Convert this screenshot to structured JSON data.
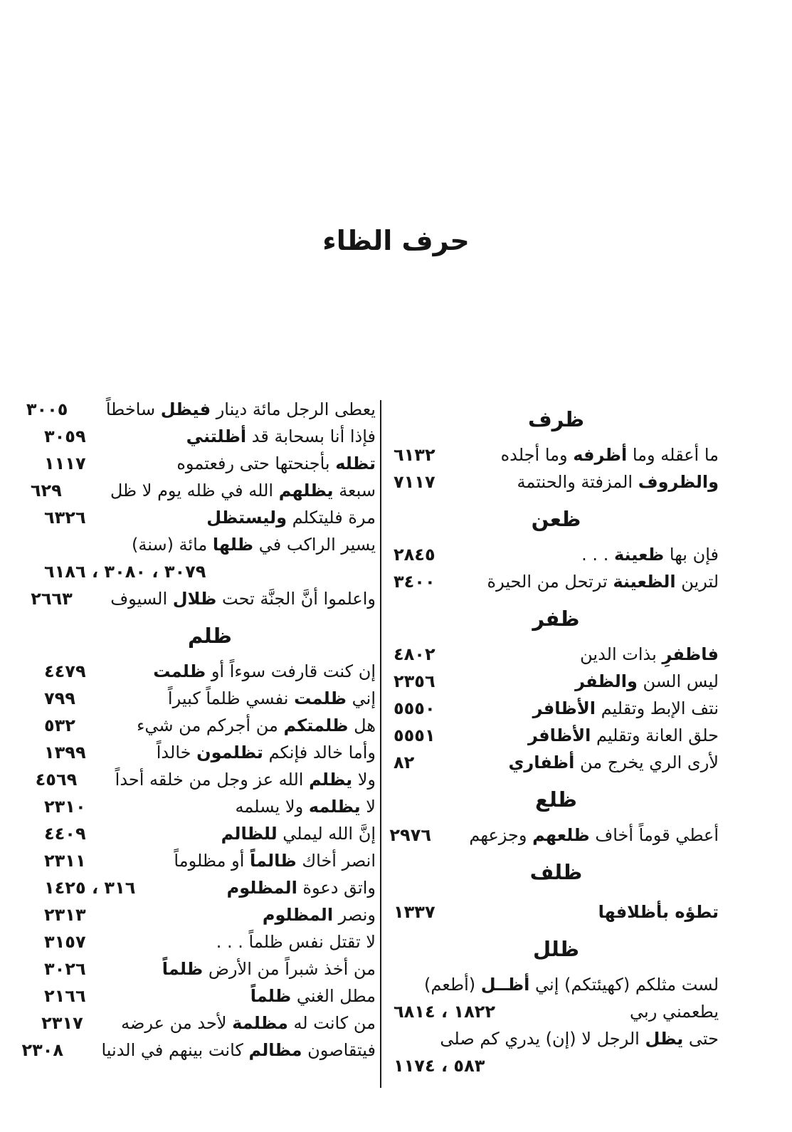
{
  "title": "حرف الظاء",
  "columns": {
    "right": [
      {
        "type": "heading",
        "text": "ظرف"
      },
      {
        "type": "entry",
        "text": "ما أعقله وما **أظرفه** وما أجلده",
        "num": "٦١٣٢"
      },
      {
        "type": "entry",
        "text": "**والظروف** المزفتة والحنتمة",
        "num": "٧١١٧"
      },
      {
        "type": "heading",
        "text": "ظعن"
      },
      {
        "type": "entry",
        "text": "فإن بها **ظعينة** . . .",
        "num": "٢٨٤٥"
      },
      {
        "type": "entry",
        "text": "لترين **الظعينة** ترتحل من الحيرة",
        "num": "٣٤٠٠"
      },
      {
        "type": "heading",
        "text": "ظفر"
      },
      {
        "type": "entry",
        "text": "**فاظفرِ** بذات الدين",
        "num": "٤٨٠٢"
      },
      {
        "type": "entry",
        "text": "ليس السن **والظفر**",
        "num": "٢٣٥٦"
      },
      {
        "type": "entry",
        "text": "نتف الإبط وتقليم **الأظافر**",
        "num": "٥٥٥٠"
      },
      {
        "type": "entry",
        "text": "حلق العانة وتقليم **الأظافر**",
        "num": "٥٥٥١"
      },
      {
        "type": "entry",
        "text": "لأرى الري يخرج من **أظفاري**",
        "num": "٨٢"
      },
      {
        "type": "heading",
        "text": "ظلع"
      },
      {
        "type": "entry",
        "text": "أعطي قوماً أخاف **ظلعهم** وجزعهم",
        "num": "٢٩٧٦"
      },
      {
        "type": "heading",
        "text": "ظلف"
      },
      {
        "type": "entry",
        "text": "**تطؤه بأظلافها**",
        "num": "١٣٣٧",
        "gap": true
      },
      {
        "type": "heading",
        "text": "ظلل"
      },
      {
        "type": "entry",
        "text": "لست مثلكم (كهيئتكم) إني **أظــل** (أطعم)",
        "num": ""
      },
      {
        "type": "entry",
        "text": "يطعمني ربي",
        "num": "١٨٢٢ ، ٦٨١٤"
      },
      {
        "type": "entry",
        "text": "حتى **يظل** الرجل لا (إن) يدري كم صلى",
        "num": ""
      },
      {
        "type": "numline",
        "text": "",
        "num": "٥٨٣ ، ١١٧٤"
      }
    ],
    "left": [
      {
        "type": "entry",
        "text": "يعطى الرجل مائة دينار **فيظل** ساخطاً",
        "num": "٣٠٠٥"
      },
      {
        "type": "entry",
        "text": "فإذا أنا بسحابة قد **أظلتني**",
        "num": "٣٠٥٩"
      },
      {
        "type": "entry",
        "text": "**تظله** بأجنحتها حتى رفعتموه",
        "num": "١١١٧"
      },
      {
        "type": "entry",
        "text": "سبعة **يظلهم** الله في ظله يوم لا ظل",
        "num": "٦٢٩"
      },
      {
        "type": "entry",
        "text": "مرة فليتكلم **وليستظل**",
        "num": "٦٣٢٦"
      },
      {
        "type": "entry",
        "text": "يسير الراكب في **ظلها** مائة (سنة)",
        "num": ""
      },
      {
        "type": "numline",
        "text": "",
        "num": "٣٠٧٩ ، ٣٠٨٠ ، ٦١٨٦"
      },
      {
        "type": "entry",
        "text": "واعلموا أنَّ الجنَّة تحت **ظلال** السيوف",
        "num": "٢٦٦٣"
      },
      {
        "type": "heading",
        "text": "ظلم"
      },
      {
        "type": "entry",
        "text": "إن كنت قارفت سوءاً أو **ظلمت**",
        "num": "٤٤٧٩"
      },
      {
        "type": "entry",
        "text": "إني **ظلمت** نفسي ظلماً كبيراً",
        "num": "٧٩٩"
      },
      {
        "type": "entry",
        "text": "هل **ظلمتكم** من أجركم من شيء",
        "num": "٥٣٢"
      },
      {
        "type": "entry",
        "text": "وأما خالد فإنكم **تظلمون** خالداً",
        "num": "١٣٩٩"
      },
      {
        "type": "entry",
        "text": "ولا **يظلم** الله عز وجل من خلقه أحداً",
        "num": "٤٥٦٩"
      },
      {
        "type": "entry",
        "text": "لا **يظلمه** ولا يسلمه",
        "num": "٢٣١٠"
      },
      {
        "type": "entry",
        "text": "إنَّ الله ليملي **للظالم**",
        "num": "٤٤٠٩"
      },
      {
        "type": "entry",
        "text": "انصر أخاك **ظالماً** أو مظلوماً",
        "num": "٢٣١١"
      },
      {
        "type": "entry",
        "text": "واتق دعوة **المظلوم**",
        "num": "٣١٦ ، ١٤٢٥"
      },
      {
        "type": "entry",
        "text": "ونصر **المظلوم**",
        "num": "٢٣١٣"
      },
      {
        "type": "entry",
        "text": "لا تقتل نفس ظلماً . . .",
        "num": "٣١٥٧"
      },
      {
        "type": "entry",
        "text": "من أخذ شبراً من الأرض **ظلماً**",
        "num": "٣٠٢٦"
      },
      {
        "type": "entry",
        "text": "مطل الغني **ظلماً**",
        "num": "٢١٦٦"
      },
      {
        "type": "entry",
        "text": "من كانت له **مظلمة** لأحد من عرضه",
        "num": "٢٣١٧"
      },
      {
        "type": "entry",
        "text": "فيتقاصون **مظالم** كانت بينهم في الدنيا",
        "num": "٢٣٠٨"
      }
    ]
  }
}
